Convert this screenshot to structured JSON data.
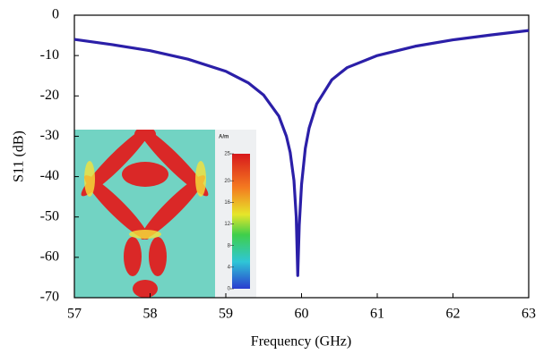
{
  "chart_data": {
    "type": "line",
    "x_label": "Frequency (GHz)",
    "y_label": "S11 (dB)",
    "x": [
      57,
      57.5,
      58,
      58.5,
      59,
      59.3,
      59.5,
      59.7,
      59.8,
      59.85,
      59.9,
      59.93,
      59.95,
      59.97,
      60,
      60.05,
      60.1,
      60.2,
      60.4,
      60.6,
      61,
      61.5,
      62,
      62.5,
      63
    ],
    "values": [
      -6,
      -7.3,
      -8.8,
      -10.9,
      -13.9,
      -16.8,
      -19.8,
      -25,
      -30,
      -34,
      -41,
      -50,
      -64.5,
      -52,
      -42,
      -33,
      -28,
      -22,
      -16,
      -13,
      -10,
      -7.7,
      -6.1,
      -4.9,
      -3.8
    ],
    "color": "#2b1fa8",
    "xlim": [
      57,
      63
    ],
    "xticks": [
      57,
      58,
      59,
      60,
      61,
      62,
      63
    ],
    "ylim": [
      -70,
      0
    ],
    "yticks": [
      0,
      -10,
      -20,
      -30,
      -40,
      -50,
      -60,
      -70
    ],
    "grid": false
  },
  "inset": {
    "colorbar_unit": "A/m",
    "colorbar_lim": [
      0,
      25
    ],
    "colorbar_ticks": [
      25,
      20,
      16,
      12,
      8,
      4,
      0
    ]
  }
}
